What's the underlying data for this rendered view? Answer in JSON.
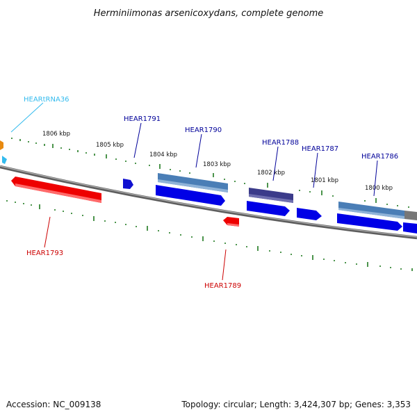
{
  "title": "Herminiimonas arsenicoxydans, complete genome",
  "footer": {
    "accession": "Accession: NC_009138",
    "summary": "Topology: circular; Length: 3,424,307 bp; Genes: 3,353"
  },
  "colors": {
    "backbone": "#7a7a7a",
    "tick": "#1f7a1f",
    "forward_cds": "#0000e6",
    "reverse_cds": "#ee0000",
    "trna": "#33bbee",
    "forward_label": "#000099",
    "reverse_label": "#cc0000"
  },
  "scale_labels": [
    "1806 kbp",
    "1805 kbp",
    "1804 kbp",
    "1803 kbp",
    "1802 kbp",
    "1801 kbp",
    "1800 kbp"
  ],
  "gene_labels": [
    {
      "name": "HEARtRNA36",
      "type": "trna"
    },
    {
      "name": "HEAR1791",
      "type": "forward"
    },
    {
      "name": "HEAR1790",
      "type": "forward"
    },
    {
      "name": "HEAR1788",
      "type": "forward"
    },
    {
      "name": "HEAR1787",
      "type": "forward"
    },
    {
      "name": "HEAR1786",
      "type": "forward"
    },
    {
      "name": "HEAR1793",
      "type": "reverse"
    },
    {
      "name": "HEAR1789",
      "type": "reverse"
    }
  ]
}
